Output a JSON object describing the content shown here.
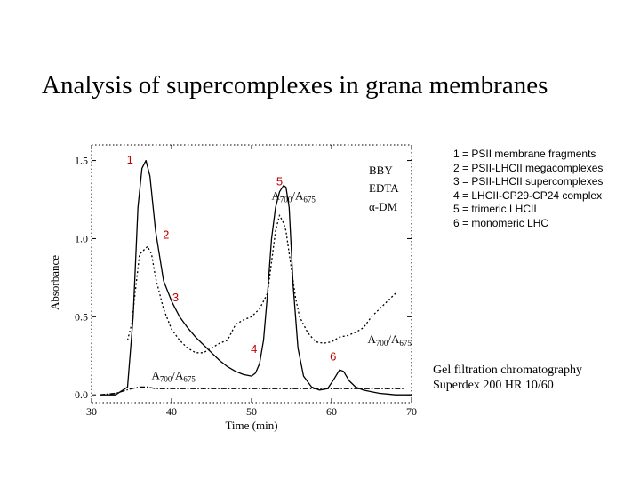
{
  "slide": {
    "title": "Analysis of supercomplexes in grana membranes"
  },
  "legend": {
    "items": [
      "1 = PSII membrane fragments",
      "2 = PSII-LHCII megacomplexes",
      "3 = PSII-LHCII supercomplexes",
      "4 = LHCII-CP29-CP24 complex",
      "5 = trimeric LHCII",
      "6 = monomeric LHC"
    ]
  },
  "method": {
    "line1": "Gel filtration chromatography",
    "line2": "Superdex 200 HR 10/60"
  },
  "chart_data": {
    "type": "line",
    "xlabel": "Time (min)",
    "ylabel": "Absorbance",
    "xlim": [
      30,
      70
    ],
    "ylim": [
      -0.05,
      1.6
    ],
    "x_ticks": [
      30,
      40,
      50,
      60,
      70
    ],
    "y_ticks": [
      0.0,
      0.5,
      1.0,
      1.5
    ],
    "y_tick_labels": [
      "0.0",
      "0.5",
      "1.0",
      "1.5"
    ],
    "grid": false,
    "buffer_labels": [
      "BBY",
      "EDTA",
      "α-DM"
    ],
    "peak_labels": [
      {
        "text": "1",
        "x": 34.8,
        "y": 1.48
      },
      {
        "text": "2",
        "x": 39.3,
        "y": 1.0
      },
      {
        "text": "3",
        "x": 40.5,
        "y": 0.6
      },
      {
        "text": "4",
        "x": 50.3,
        "y": 0.27
      },
      {
        "text": "5",
        "x": 53.5,
        "y": 1.34
      },
      {
        "text": "6",
        "x": 60.2,
        "y": 0.22
      }
    ],
    "series": [
      {
        "name": "A700/A675",
        "label_x": 37.5,
        "label_y": 0.1,
        "style": "solid",
        "x": [
          31,
          33,
          34.5,
          35.2,
          35.8,
          36.3,
          36.8,
          37.3,
          38,
          39,
          40,
          41,
          42,
          43,
          44,
          45,
          46,
          47,
          48,
          49,
          50,
          50.5,
          51,
          51.5,
          52,
          52.5,
          53,
          53.5,
          54,
          54.3,
          54.7,
          55.2,
          55.8,
          56.5,
          57.5,
          58.5,
          59.5,
          60.3,
          61,
          61.5,
          62.2,
          63,
          64,
          65,
          66,
          67,
          68,
          69,
          70
        ],
        "y": [
          0.0,
          0.0,
          0.05,
          0.5,
          1.2,
          1.45,
          1.5,
          1.4,
          1.05,
          0.73,
          0.6,
          0.5,
          0.43,
          0.37,
          0.32,
          0.27,
          0.22,
          0.18,
          0.15,
          0.13,
          0.12,
          0.14,
          0.2,
          0.35,
          0.65,
          1.0,
          1.2,
          1.3,
          1.34,
          1.33,
          1.2,
          0.7,
          0.3,
          0.12,
          0.05,
          0.03,
          0.04,
          0.1,
          0.16,
          0.15,
          0.09,
          0.05,
          0.03,
          0.02,
          0.01,
          0.005,
          0.0,
          0.0,
          0.0
        ]
      },
      {
        "name": "A700/A675 (dotted)",
        "label_x": 52.5,
        "label_y": 1.25,
        "style": "dotted",
        "x": [
          34.5,
          35,
          36,
          37,
          37.5,
          38,
          39,
          40,
          41,
          42,
          43,
          44,
          45,
          46,
          47,
          47.5,
          48,
          49,
          50,
          51,
          52,
          52.5,
          53,
          53.5,
          54,
          54.3,
          55,
          55.5,
          56,
          57,
          58,
          59,
          60,
          61,
          62,
          63,
          64,
          65,
          66,
          67,
          68
        ],
        "y": [
          0.35,
          0.45,
          0.9,
          0.95,
          0.9,
          0.75,
          0.55,
          0.42,
          0.35,
          0.3,
          0.27,
          0.27,
          0.3,
          0.33,
          0.35,
          0.4,
          0.45,
          0.48,
          0.5,
          0.55,
          0.65,
          0.85,
          1.05,
          1.15,
          1.1,
          1.05,
          0.8,
          0.62,
          0.5,
          0.4,
          0.34,
          0.33,
          0.34,
          0.37,
          0.38,
          0.4,
          0.43,
          0.5,
          0.55,
          0.6,
          0.65
        ]
      },
      {
        "name": "A700/A675 (dash-dot)",
        "label_x": 64.5,
        "label_y": 0.33,
        "style": "dashdot",
        "x": [
          31,
          33,
          35,
          36,
          37,
          38,
          40,
          42,
          44,
          46,
          48,
          50,
          52,
          54,
          56,
          58,
          60,
          62,
          64,
          66,
          68,
          69
        ],
        "y": [
          0.0,
          0.01,
          0.04,
          0.05,
          0.05,
          0.04,
          0.04,
          0.04,
          0.04,
          0.04,
          0.04,
          0.04,
          0.04,
          0.04,
          0.04,
          0.04,
          0.04,
          0.04,
          0.04,
          0.04,
          0.04,
          0.04
        ]
      }
    ]
  }
}
